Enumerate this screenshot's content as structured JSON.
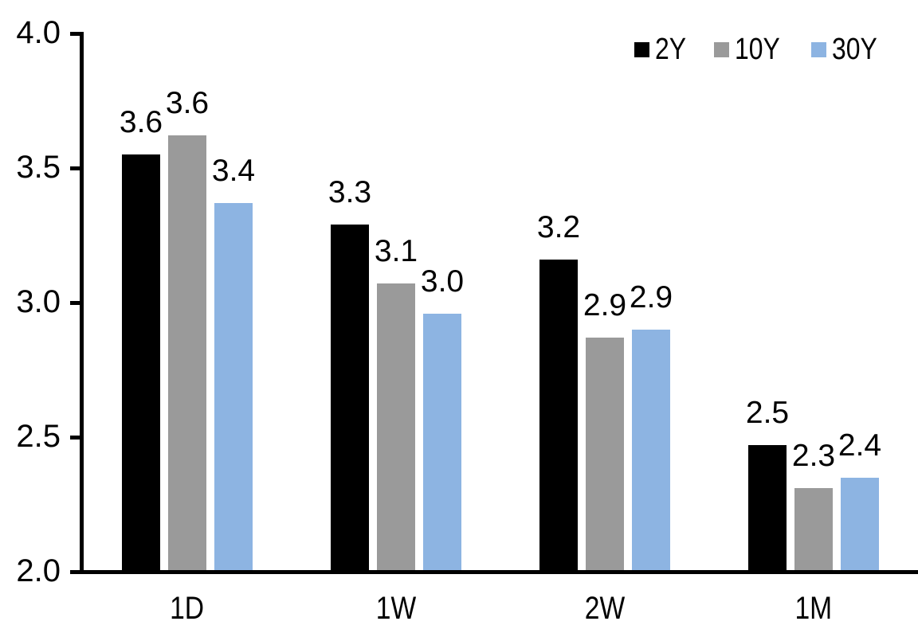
{
  "chart_data": {
    "type": "bar",
    "title": "",
    "categories": [
      "1D",
      "1W",
      "2W",
      "1M"
    ],
    "series": [
      {
        "name": "2Y",
        "color": "#000000",
        "values": [
          3.55,
          3.29,
          3.16,
          2.47
        ],
        "labels": [
          "3.6",
          "3.3",
          "3.2",
          "2.5"
        ]
      },
      {
        "name": "10Y",
        "color": "#9A9A9A",
        "values": [
          3.62,
          3.07,
          2.87,
          2.31
        ],
        "labels": [
          "3.6",
          "3.1",
          "2.9",
          "2.3"
        ]
      },
      {
        "name": "30Y",
        "color": "#8DB4E2",
        "values": [
          3.37,
          2.96,
          2.9,
          2.35
        ],
        "labels": [
          "3.4",
          "3.0",
          "2.9",
          "2.4"
        ]
      }
    ],
    "ylim": [
      2.0,
      4.0
    ],
    "yticks": [
      {
        "value": 4.0,
        "label": "4.0"
      },
      {
        "value": 3.5,
        "label": "3.5"
      },
      {
        "value": 3.0,
        "label": "3.0"
      },
      {
        "value": 2.5,
        "label": "2.5"
      },
      {
        "value": 2.0,
        "label": "2.0"
      }
    ],
    "legend_position": "top-right",
    "grid": false,
    "axis_color": "#000000",
    "background": "#FFFFFF"
  }
}
